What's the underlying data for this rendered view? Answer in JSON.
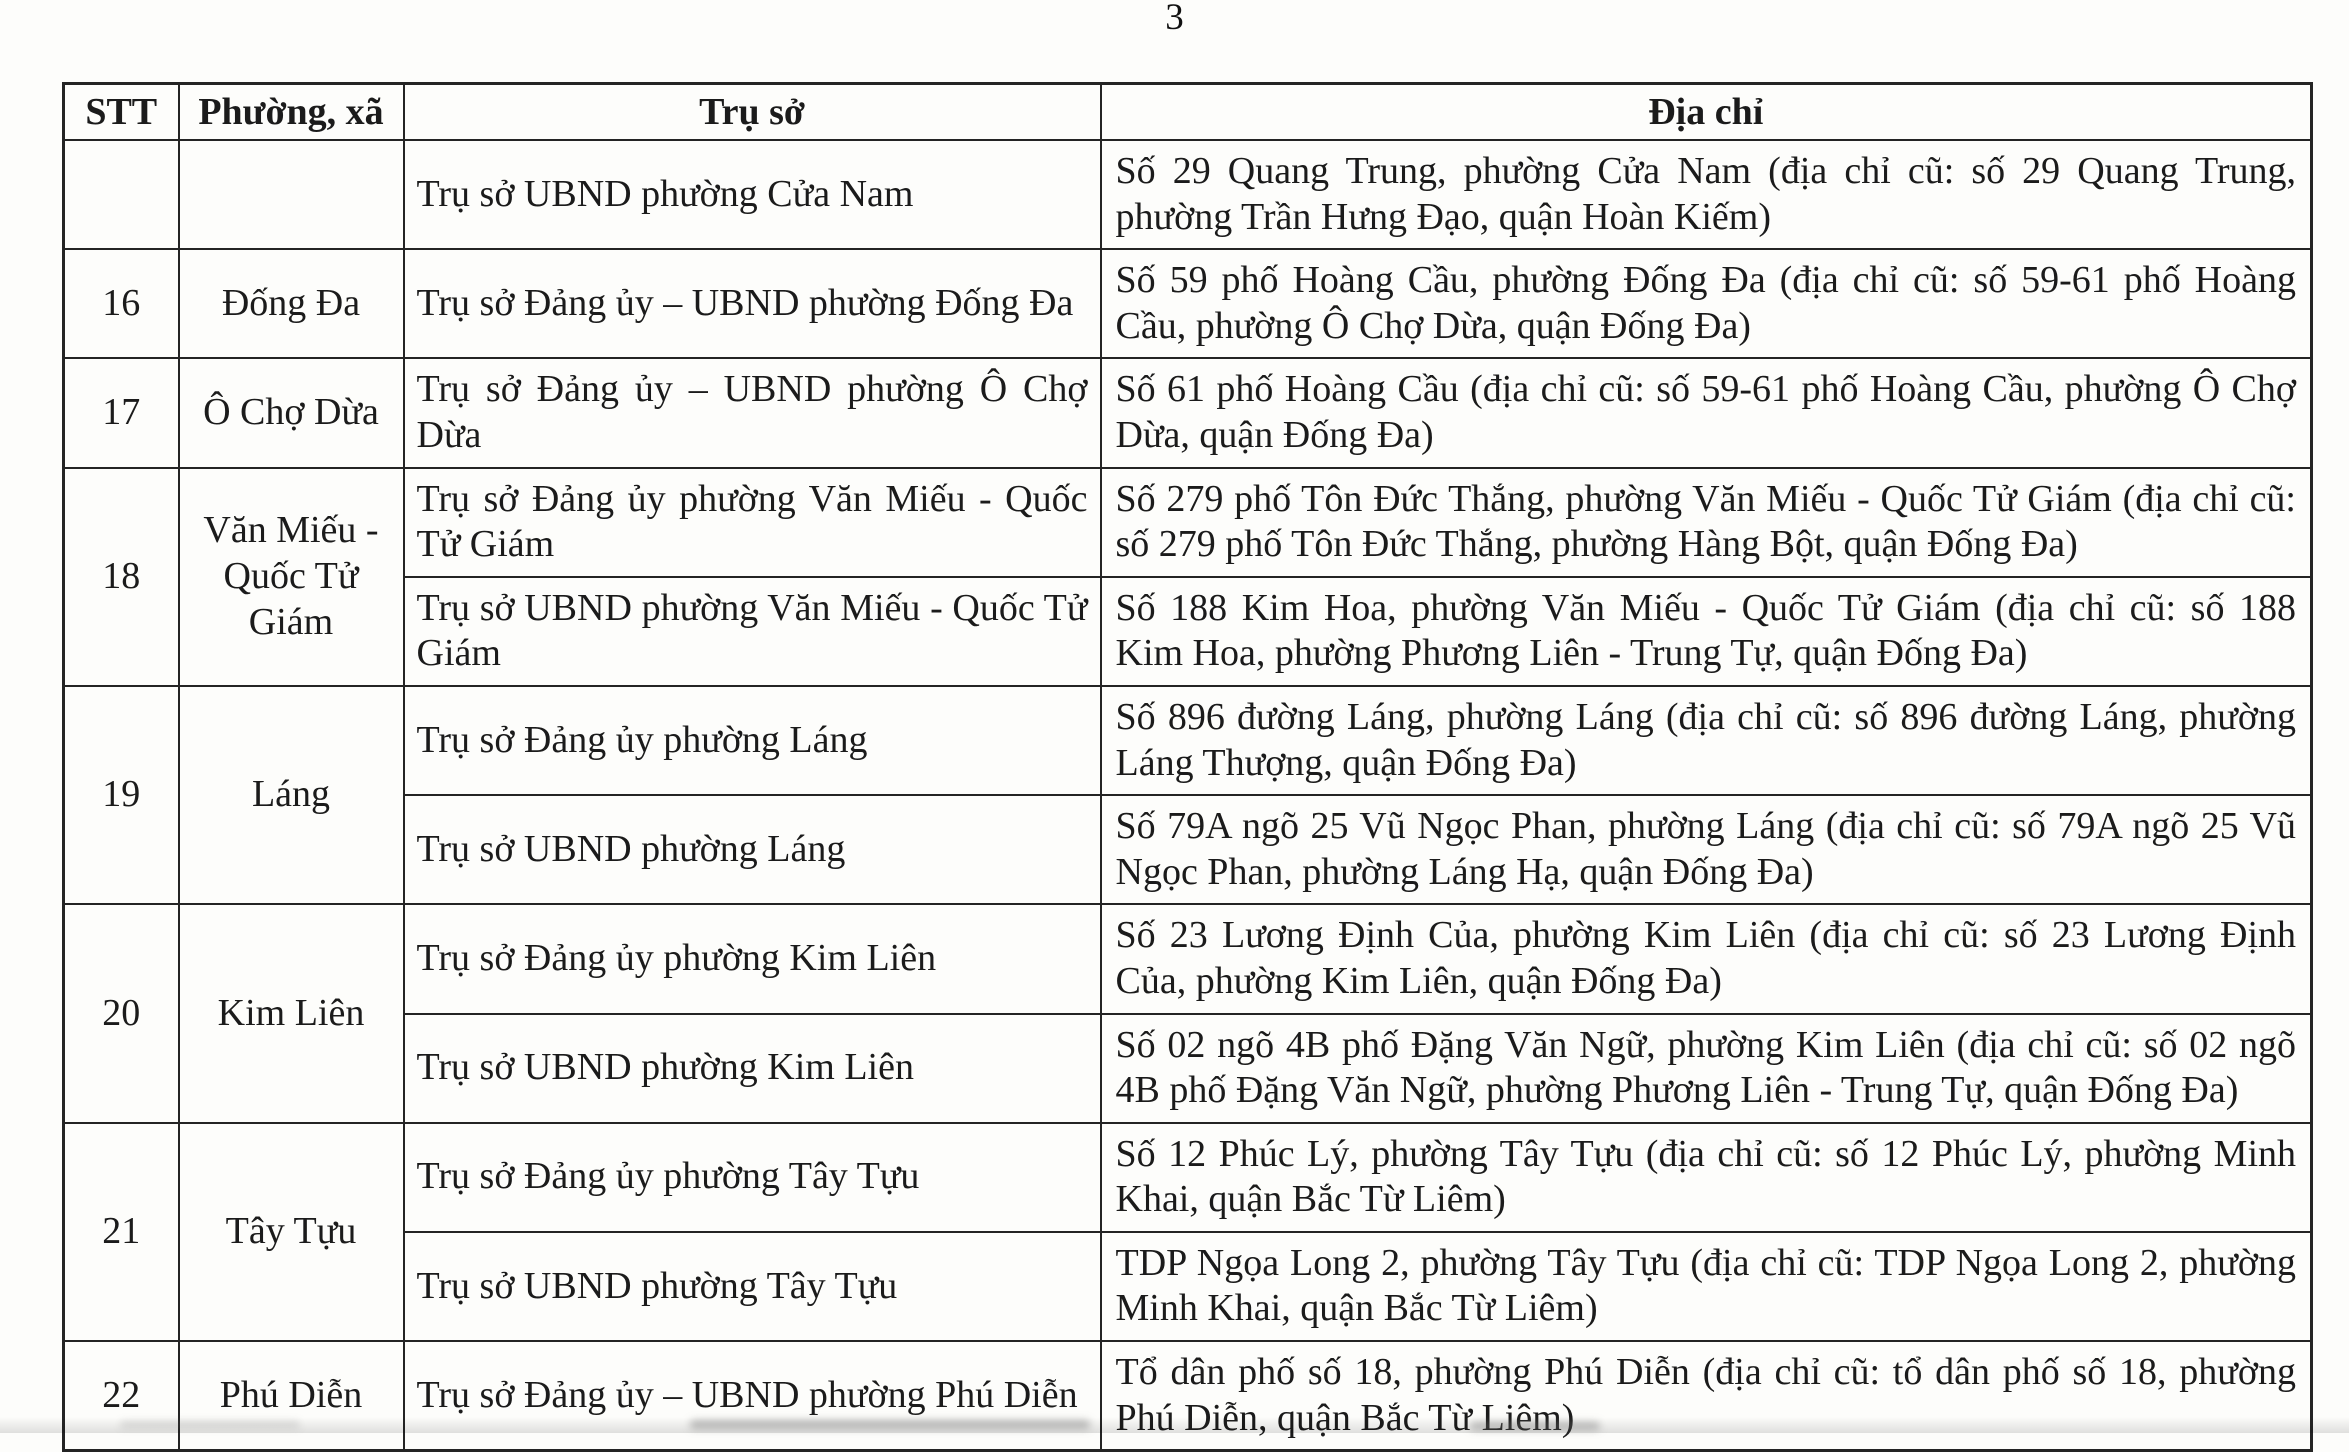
{
  "page": {
    "number": "3"
  },
  "colors": {
    "text": "#1b1b1b",
    "border": "#242424",
    "background": "#fdfdfb"
  },
  "table": {
    "headers": [
      "STT",
      "Phường, xã",
      "Trụ sở",
      "Địa chỉ"
    ],
    "groups": [
      {
        "stt": "",
        "ward": "",
        "rows": [
          {
            "office": "Trụ sở UBND phường Cửa Nam",
            "address": "Số 29 Quang Trung, phường Cửa Nam (địa chỉ cũ: số 29 Quang Trung, phường Trần Hưng Đạo, quận Hoàn Kiếm)"
          }
        ]
      },
      {
        "stt": "16",
        "ward": "Đống Đa",
        "rows": [
          {
            "office": "Trụ sở Đảng ủy – UBND phường Đống Đa",
            "address": "Số 59 phố Hoàng Cầu, phường Đống Đa (địa chỉ cũ: số 59-61 phố Hoàng Cầu, phường Ô Chợ Dừa, quận Đống Đa)"
          }
        ]
      },
      {
        "stt": "17",
        "ward": "Ô Chợ Dừa",
        "rows": [
          {
            "office": "Trụ sở Đảng ủy – UBND phường Ô Chợ Dừa",
            "address": "Số 61 phố Hoàng Cầu (địa chỉ cũ: số 59-61 phố Hoàng Cầu, phường Ô Chợ Dừa, quận Đống Đa)"
          }
        ]
      },
      {
        "stt": "18",
        "ward": "Văn Miếu - Quốc Tử Giám",
        "rows": [
          {
            "office": "Trụ sở Đảng ủy phường Văn Miếu - Quốc Tử Giám",
            "address": "Số 279 phố Tôn Đức Thắng, phường Văn Miếu - Quốc Tử Giám (địa chỉ cũ: số 279 phố Tôn Đức Thắng, phường Hàng Bột, quận Đống Đa)"
          },
          {
            "office": "Trụ sở UBND phường Văn Miếu - Quốc Tử Giám",
            "address": "Số 188 Kim Hoa, phường Văn Miếu - Quốc Tử Giám (địa chỉ cũ: số 188 Kim Hoa, phường Phương Liên - Trung Tự, quận Đống Đa)"
          }
        ]
      },
      {
        "stt": "19",
        "ward": "Láng",
        "rows": [
          {
            "office": "Trụ sở Đảng ủy phường Láng",
            "address": "Số 896 đường Láng, phường Láng (địa chỉ cũ: số 896 đường Láng, phường Láng Thượng, quận Đống Đa)"
          },
          {
            "office": "Trụ sở UBND phường Láng",
            "address": "Số 79A ngõ 25 Vũ Ngọc Phan, phường Láng (địa chỉ cũ: số 79A ngõ 25 Vũ Ngọc Phan, phường Láng Hạ, quận Đống Đa)"
          }
        ]
      },
      {
        "stt": "20",
        "ward": "Kim Liên",
        "rows": [
          {
            "office": "Trụ sở Đảng ủy phường Kim Liên",
            "address": "Số 23 Lương Định Của, phường Kim Liên (địa chỉ cũ: số 23 Lương Định Của, phường Kim Liên, quận Đống Đa)"
          },
          {
            "office": "Trụ sở UBND phường Kim Liên",
            "address": "Số 02 ngõ 4B phố Đặng Văn Ngữ, phường Kim Liên (địa chỉ cũ: số 02 ngõ 4B phố Đặng Văn Ngữ, phường Phương Liên - Trung Tự, quận Đống Đa)"
          }
        ]
      },
      {
        "stt": "21",
        "ward": "Tây Tựu",
        "rows": [
          {
            "office": "Trụ sở Đảng ủy phường Tây Tựu",
            "address": "Số 12 Phúc Lý, phường Tây Tựu (địa chỉ cũ: số 12 Phúc Lý, phường Minh Khai, quận Bắc Từ Liêm)"
          },
          {
            "office": "Trụ sở UBND phường Tây Tựu",
            "address": "TDP Ngọa Long 2, phường Tây Tựu (địa chỉ cũ: TDP Ngọa Long 2, phường Minh Khai, quận Bắc Từ Liêm)"
          }
        ]
      },
      {
        "stt": "22",
        "ward": "Phú Diễn",
        "rows": [
          {
            "office": "Trụ sở Đảng ủy – UBND phường Phú Diễn",
            "address": "Tổ dân phố số 18, phường Phú Diễn (địa chỉ cũ: tổ dân phố số 18, phường Phú Diễn, quận Bắc Từ Liêm)"
          }
        ]
      }
    ]
  }
}
